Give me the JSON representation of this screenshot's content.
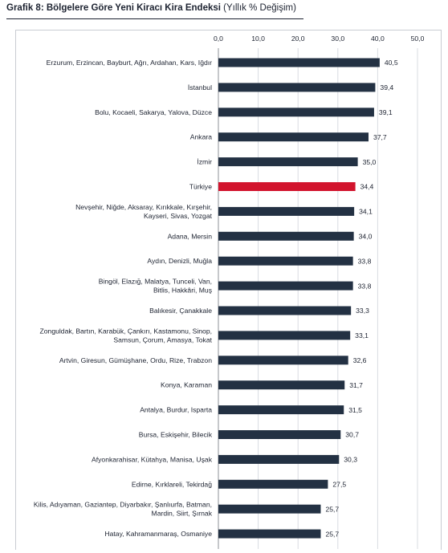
{
  "title": {
    "bold": "Grafik 8: Bölgelere Göre Yeni Kiracı Kira Endeksi",
    "sub": "(Yıllık % Değişim)"
  },
  "colors": {
    "bar": "#233143",
    "highlight": "#d2142d",
    "grid": "#d9dce1",
    "axis": "#8c9097"
  },
  "chart_data": {
    "type": "bar",
    "orientation": "horizontal",
    "title": "Grafik 8: Bölgelere Göre Yeni Kiracı Kira Endeksi (Yıllık % Değişim)",
    "xlim": [
      0,
      50
    ],
    "xticks": [
      "0,0",
      "10,0",
      "20,0",
      "30,0",
      "40,0",
      "50,0"
    ],
    "grid": true,
    "highlight": "Türkiye",
    "categories": [
      [
        "Erzurum, Erzincan, Bayburt, Ağrı, Ardahan, Kars, Iğdır"
      ],
      [
        "İstanbul"
      ],
      [
        "Bolu, Kocaeli, Sakarya, Yalova, Düzce"
      ],
      [
        "Ankara"
      ],
      [
        "İzmir"
      ],
      [
        "Türkiye"
      ],
      [
        "Nevşehir, Niğde, Aksaray, Kırıkkale, Kırşehir,",
        "Kayseri, Sivas, Yozgat"
      ],
      [
        "Adana, Mersin"
      ],
      [
        "Aydın, Denizli, Muğla"
      ],
      [
        "Bingöl, Elazığ, Malatya, Tunceli, Van,",
        "Bitlis, Hakkâri, Muş"
      ],
      [
        "Balıkesir, Çanakkale"
      ],
      [
        "Zonguldak, Bartın, Karabük, Çankırı, Kastamonu, Sinop,",
        "Samsun, Çorum, Amasya, Tokat"
      ],
      [
        "Artvin, Giresun, Gümüşhane, Ordu, Rize, Trabzon"
      ],
      [
        "Konya, Karaman"
      ],
      [
        "Antalya, Burdur, Isparta"
      ],
      [
        "Bursa, Eskişehir, Bilecik"
      ],
      [
        "Afyonkarahisar, Kütahya, Manisa, Uşak"
      ],
      [
        "Edirne, Kırklareli, Tekirdağ"
      ],
      [
        "Kilis, Adıyaman, Gaziantep, Diyarbakır, Şanlıurfa, Batman,",
        "Mardin, Siirt, Şırnak"
      ],
      [
        "Hatay, Kahramanmaraş, Osmaniye"
      ]
    ],
    "values": [
      40.5,
      39.4,
      39.1,
      37.7,
      35.0,
      34.4,
      34.1,
      34.0,
      33.8,
      33.8,
      33.3,
      33.1,
      32.6,
      31.7,
      31.5,
      30.7,
      30.3,
      27.5,
      25.7,
      25.7
    ],
    "value_labels": [
      "40,5",
      "39,4",
      "39,1",
      "37,7",
      "35,0",
      "34,4",
      "34,1",
      "34,0",
      "33,8",
      "33,8",
      "33,3",
      "33,1",
      "32,6",
      "31,7",
      "31,5",
      "30,7",
      "30,3",
      "27,5",
      "25,7",
      "25,7"
    ]
  }
}
